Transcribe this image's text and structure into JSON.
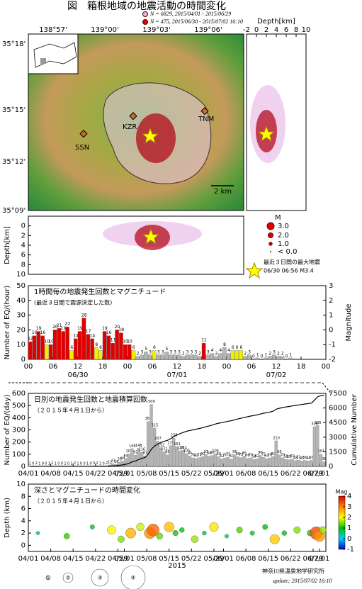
{
  "title": "図　箱根地域の地震活動の時間変化",
  "legend": [
    {
      "label": "N = 6829,  2015/04/01 - 2015/06/29",
      "color": "#e6b3e6"
    },
    {
      "label": "N = 475,  2015/06/30 - 2015/07/02 16:10",
      "color": "#e00000"
    }
  ],
  "map": {
    "lon_ticks": [
      "138°57'",
      "139°00'",
      "139°03'",
      "139°06'"
    ],
    "lat_ticks": [
      "35°18'",
      "35°15'",
      "35°12'",
      "35°09'"
    ],
    "places": [
      "KZR",
      "SSN",
      "TNM"
    ],
    "scale_label": "2 km"
  },
  "depth_right": {
    "label": "Depth[km]",
    "xlim": [
      -2,
      10
    ],
    "xticks": [
      -2,
      0,
      2,
      4,
      6,
      8,
      10
    ]
  },
  "depth_bottom": {
    "label": "Depth[km]",
    "ylim": [
      -2,
      10
    ],
    "yticks": [
      0,
      2,
      4,
      6,
      8,
      10
    ]
  },
  "magnitude_legend": {
    "title": "M",
    "labels": [
      "3.0",
      "2.0",
      "1.0",
      "< 0.0"
    ],
    "star_label": "最近３日間の最大地震",
    "star_info": "06/30 06:56 M3.4"
  },
  "chart_data": [
    {
      "type": "bar",
      "title": "1時間毎の地震発生回数とマグニチュード",
      "subtitle": "(最近３日間で震源決定した数)",
      "ylabel": "Number of EQ/(hour)",
      "y2label": "Magnitude",
      "xlim": [
        0,
        72
      ],
      "xticks": [
        {
          "value": 0,
          "label": "00"
        },
        {
          "value": 6,
          "label": "06"
        },
        {
          "value": 12,
          "label": "12"
        },
        {
          "value": 18,
          "label": "18"
        },
        {
          "value": 24,
          "label": "00"
        },
        {
          "value": 30,
          "label": "06"
        },
        {
          "value": 36,
          "label": "12"
        },
        {
          "value": 42,
          "label": "18"
        },
        {
          "value": 48,
          "label": "00"
        },
        {
          "value": 54,
          "label": "06"
        },
        {
          "value": 60,
          "label": "12"
        },
        {
          "value": 66,
          "label": "18"
        },
        {
          "value": 72,
          "label": "00"
        }
      ],
      "date_labels": [
        {
          "value": 12,
          "label": "06/30"
        },
        {
          "value": 36,
          "label": "07/01"
        },
        {
          "value": 60,
          "label": "07/02"
        }
      ],
      "ylim": [
        0,
        50
      ],
      "yticks": [
        0,
        10,
        20,
        30,
        40,
        50
      ],
      "y2lim": [
        -2,
        3
      ],
      "y2ticks": [
        -2,
        -1,
        0,
        1,
        2,
        3
      ],
      "values": [
        12,
        16,
        19,
        16,
        10,
        10,
        20,
        21,
        19,
        22,
        6,
        14,
        19,
        28,
        17,
        14,
        8,
        6,
        19,
        16,
        11,
        20,
        18,
        10,
        10,
        6,
        2,
        3,
        5,
        3,
        6,
        3,
        3,
        5,
        3,
        3,
        3,
        2,
        3,
        3,
        3,
        2,
        11,
        3,
        4,
        2,
        4,
        8,
        4,
        6,
        6,
        6,
        2,
        3,
        0,
        1,
        0,
        1,
        2,
        3,
        2,
        2,
        0,
        1
      ],
      "colors": [
        "#e00000",
        "#e00000",
        "#e00000",
        "#e00000",
        "#f0f000",
        "#e00000",
        "#e00000",
        "#e00000",
        "#e00000",
        "#e00000",
        "#f0f000",
        "#e00000",
        "#e00000",
        "#e00000",
        "#e00000",
        "#e00000",
        "#f0f000",
        "#f0f000",
        "#e00000",
        "#e00000",
        "#e00000",
        "#e00000",
        "#e00000",
        "#e00000",
        "#e00000",
        "#f0f000",
        "#b4b4b4",
        "#b4b4b4",
        "#b4b4b4",
        "#b4b4b4",
        "#f0f000",
        "#b4b4b4",
        "#b4b4b4",
        "#b4b4b4",
        "#b4b4b4",
        "#b4b4b4",
        "#b4b4b4",
        "#b4b4b4",
        "#b4b4b4",
        "#b4b4b4",
        "#b4b4b4",
        "#b4b4b4",
        "#e00000",
        "#b4b4b4",
        "#b4b4b4",
        "#b4b4b4",
        "#b4b4b4",
        "#b4b4b4",
        "#b4b4b4",
        "#f0f000",
        "#f0f000",
        "#f0f000",
        "#b4b4b4",
        "#b4b4b4",
        "#b4b4b4",
        "#b4b4b4",
        "#b4b4b4",
        "#b4b4b4",
        "#b4b4b4",
        "#b4b4b4",
        "#b4b4b4",
        "#b4b4b4",
        "#b4b4b4",
        "#b4b4b4"
      ]
    },
    {
      "type": "bar_line",
      "title": "日別の地震発生回数と地震積算回数",
      "subtitle": "（２０１５年４月１日から）",
      "ylabel": "Number of EQ/(day)",
      "y2label": "Cumulative Number",
      "xlim": [
        0,
        93
      ],
      "xticks": [
        {
          "value": 0,
          "label": "04/01"
        },
        {
          "value": 7,
          "label": "04/08"
        },
        {
          "value": 14,
          "label": "04/15"
        },
        {
          "value": 21,
          "label": "04/22"
        },
        {
          "value": 28,
          "label": "04/29"
        },
        {
          "value": 30,
          "label": "05/01"
        },
        {
          "value": 37,
          "label": "05/08"
        },
        {
          "value": 44,
          "label": "05/15"
        },
        {
          "value": 51,
          "label": "05/22"
        },
        {
          "value": 58,
          "label": "05/29"
        },
        {
          "value": 61,
          "label": "06/01"
        },
        {
          "value": 68,
          "label": "06/08"
        },
        {
          "value": 75,
          "label": "06/15"
        },
        {
          "value": 82,
          "label": "06/22"
        },
        {
          "value": 89,
          "label": "06/29"
        },
        {
          "value": 91,
          "label": "07/01"
        }
      ],
      "ylim": [
        0,
        600
      ],
      "yticks": [
        0,
        100,
        200,
        300,
        400,
        500,
        600
      ],
      "y2lim": [
        0,
        7500
      ],
      "y2ticks": [
        0,
        1500,
        3000,
        4500,
        6000,
        7500
      ],
      "color": "#b4b4b4",
      "line_color": "#000000",
      "values": [
        1,
        0,
        2,
        1,
        0,
        0,
        1,
        2,
        1,
        0,
        0,
        1,
        0,
        1,
        2,
        1,
        0,
        0,
        1,
        0,
        3,
        2,
        1,
        0,
        2,
        12,
        23,
        16,
        35,
        44,
        64,
        103,
        146,
        92,
        148,
        116,
        87,
        369,
        509,
        315,
        207,
        152,
        121,
        95,
        170,
        233,
        161,
        128,
        132,
        105,
        85,
        70,
        65,
        72,
        80,
        97,
        84,
        90,
        104,
        80,
        62,
        70,
        75,
        60,
        95,
        80,
        72,
        85,
        66,
        70,
        58,
        62,
        90,
        75,
        64,
        70,
        80,
        210,
        95,
        70,
        58,
        55,
        60,
        48,
        52,
        45,
        50,
        44,
        50,
        326,
        336,
        101,
        38
      ],
      "cumulative": {
        "axis": "y2",
        "values": [
          1,
          1,
          3,
          4,
          4,
          4,
          5,
          7,
          8,
          8,
          8,
          9,
          9,
          10,
          12,
          13,
          13,
          13,
          14,
          14,
          17,
          19,
          20,
          20,
          22,
          34,
          57,
          73,
          108,
          152,
          216,
          319,
          465,
          557,
          705,
          821,
          908,
          1277,
          1786,
          2101,
          2308,
          2460,
          2581,
          2676,
          2846,
          3079,
          3240,
          3368,
          3500,
          3605,
          3690,
          3760,
          3825,
          3897,
          3977,
          4074,
          4158,
          4248,
          4352,
          4432,
          4494,
          4564,
          4639,
          4699,
          4794,
          4874,
          4946,
          5031,
          5097,
          5167,
          5225,
          5287,
          5377,
          5452,
          5516,
          5586,
          5666,
          5876,
          5971,
          6041,
          6099,
          6154,
          6214,
          6262,
          6314,
          6359,
          6409,
          6453,
          6503,
          6829,
          7165,
          7266,
          7304
        ]
      }
    },
    {
      "type": "scatter",
      "title": "深さとマグニチュードの時間変化",
      "subtitle": "（２０１５年４月１日から）",
      "ylabel": "Depth (km)",
      "xlabel": "2015",
      "xlim": [
        0,
        93
      ],
      "xticks": [
        {
          "value": 0,
          "label": "04/01"
        },
        {
          "value": 7,
          "label": "04/08"
        },
        {
          "value": 14,
          "label": "04/15"
        },
        {
          "value": 21,
          "label": "04/22"
        },
        {
          "value": 28,
          "label": "04/29"
        },
        {
          "value": 30,
          "label": "05/01"
        },
        {
          "value": 37,
          "label": "05/08"
        },
        {
          "value": 44,
          "label": "05/15"
        },
        {
          "value": 51,
          "label": "05/22"
        },
        {
          "value": 58,
          "label": "05/29"
        },
        {
          "value": 61,
          "label": "06/01"
        },
        {
          "value": 68,
          "label": "06/08"
        },
        {
          "value": 75,
          "label": "06/15"
        },
        {
          "value": 82,
          "label": "06/22"
        },
        {
          "value": 89,
          "label": "06/29"
        },
        {
          "value": 91,
          "label": "07/01"
        }
      ],
      "ylim": [
        -1,
        10
      ],
      "yticks": [
        0,
        2,
        4,
        6,
        8,
        10
      ],
      "colorbar": {
        "label": "Mag",
        "lim": [
          -1,
          4
        ],
        "ticks": [
          -1,
          0,
          1,
          2,
          3,
          4
        ]
      },
      "x": [
        3,
        12,
        20,
        26,
        29,
        32,
        35,
        38,
        39,
        41,
        44,
        46,
        48,
        52,
        55,
        58,
        62,
        66,
        70,
        74,
        77,
        80,
        84,
        88,
        90,
        91,
        92
      ],
      "depth": [
        2,
        1.5,
        3,
        2.5,
        1,
        2,
        3,
        2,
        2.5,
        1.5,
        3,
        2,
        2.5,
        1,
        2,
        3,
        1.5,
        2.5,
        2,
        3,
        1,
        2,
        2.5,
        2,
        2,
        1.5,
        2.5
      ],
      "mag": [
        0.5,
        1.2,
        0.8,
        2.1,
        1.5,
        2.6,
        1.8,
        2.9,
        3.2,
        1.4,
        2.5,
        1.1,
        0.9,
        1.6,
        0.7,
        2.2,
        0.6,
        1.3,
        0.8,
        1.0,
        2.4,
        0.9,
        1.5,
        1.2,
        3.4,
        2.8,
        1.6
      ]
    }
  ],
  "footer": {
    "circle_labels": [
      "①",
      "②",
      "③",
      "④"
    ],
    "institute": "神奈川県温泉地学研究所",
    "update": "update; 2015/07/02 16:10"
  }
}
